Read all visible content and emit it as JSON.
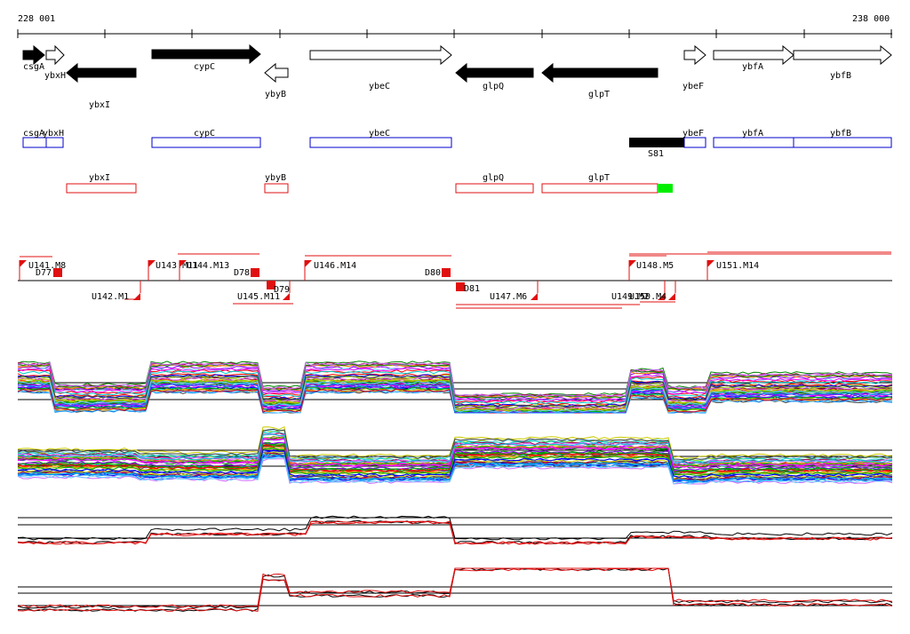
{
  "coords": {
    "start": "228 001",
    "end": "238 000"
  },
  "colors": {
    "gene_fill": "#000000",
    "forward_box": "#0000cc",
    "reverse_box": "#e01010",
    "transcript": "#e01010",
    "highlight": "#00ee00",
    "sample_trace": "#e01010",
    "reference_trace": "#000000"
  },
  "genes": [
    {
      "label": "csgA",
      "strand": "forward",
      "filled": true
    },
    {
      "label": "ybxH",
      "strand": "forward",
      "filled": false
    },
    {
      "label": "ybxI",
      "strand": "reverse",
      "filled": true
    },
    {
      "label": "cypC",
      "strand": "forward",
      "filled": true
    },
    {
      "label": "ybyB",
      "strand": "reverse",
      "filled": false
    },
    {
      "label": "ybeC",
      "strand": "forward",
      "filled": false
    },
    {
      "label": "glpQ",
      "strand": "reverse",
      "filled": true
    },
    {
      "label": "glpT",
      "strand": "reverse",
      "filled": true
    },
    {
      "label": "ybeF",
      "strand": "forward",
      "filled": false
    },
    {
      "label": "ybfA",
      "strand": "forward",
      "filled": false
    },
    {
      "label": "ybfB",
      "strand": "forward",
      "filled": false
    }
  ],
  "forward_track": [
    {
      "label": "csgA"
    },
    {
      "label": "ybxH"
    },
    {
      "label": "cypC"
    },
    {
      "label": "ybeC"
    },
    {
      "label": "ybeF"
    },
    {
      "label": "ybfA"
    },
    {
      "label": "ybfB"
    }
  ],
  "reverse_track": [
    {
      "label": "ybxI"
    },
    {
      "label": "ybyB"
    },
    {
      "label": "glpQ"
    },
    {
      "label": "glpT"
    }
  ],
  "feature_label": "S81",
  "transcripts": [
    {
      "label": "U141.M8"
    },
    {
      "label": "D77"
    },
    {
      "label": "U142.M1"
    },
    {
      "label": "U143.M11"
    },
    {
      "label": "U144.M13"
    },
    {
      "label": "D78"
    },
    {
      "label": "D79"
    },
    {
      "label": "U145.M11"
    },
    {
      "label": "U146.M14"
    },
    {
      "label": "D80"
    },
    {
      "label": "D81"
    },
    {
      "label": "U147.M6"
    },
    {
      "label": "U148.M5"
    },
    {
      "label": "U149.M2"
    },
    {
      "label": "U150.M4"
    },
    {
      "label": "U151.M14"
    }
  ],
  "panels": [
    {
      "name": "forward-strand-samples"
    },
    {
      "name": "reverse-strand-samples"
    },
    {
      "name": "forward-strand-summary"
    },
    {
      "name": "reverse-strand-summary"
    }
  ]
}
